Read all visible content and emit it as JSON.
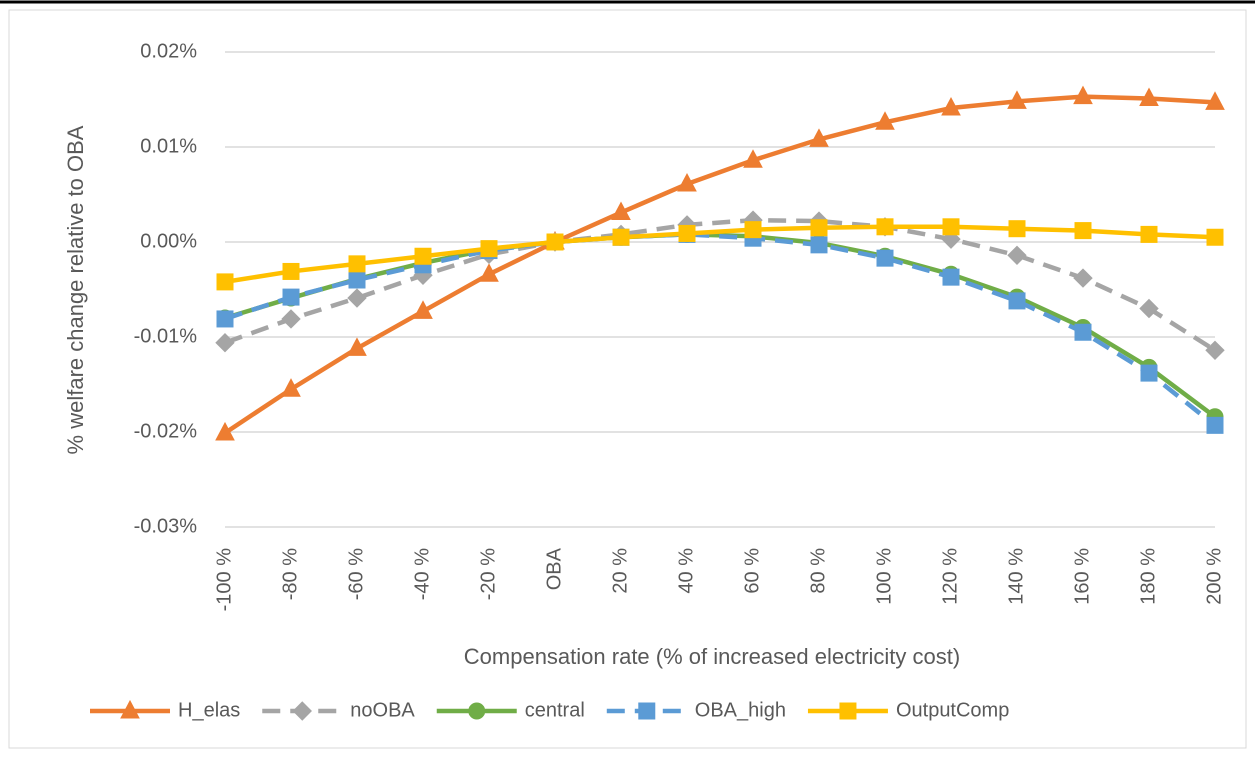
{
  "chart_data": {
    "type": "line",
    "x_label": "Compensation rate (% of increased electricity cost)",
    "y_label": "% welfare change relative to OBA",
    "categories": [
      "-100 %",
      "-80 %",
      "-60 %",
      "-40 %",
      "-20 %",
      "OBA",
      "20 %",
      "40 %",
      "60 %",
      "80 %",
      "100 %",
      "120 %",
      "140 %",
      "160 %",
      "180 %",
      "200 %"
    ],
    "ylim": [
      -0.03,
      0.02
    ],
    "yticks": [
      {
        "value": -0.03,
        "label": "-0.03%"
      },
      {
        "value": -0.02,
        "label": "-0.02%"
      },
      {
        "value": -0.01,
        "label": "-0.01%"
      },
      {
        "value": 0,
        "label": "0.00%"
      },
      {
        "value": 0.01,
        "label": "0.01%"
      },
      {
        "value": 0.02,
        "label": "0.02%"
      }
    ],
    "grid": true,
    "legend": "bottom",
    "series": [
      {
        "name": "H_elas",
        "color": "#ED7D31",
        "marker": "triangle",
        "dashed": false,
        "values": [
          -0.0201,
          -0.0155,
          -0.0112,
          -0.0073,
          -0.0034,
          0,
          0.0031,
          0.0061,
          0.0086,
          0.0108,
          0.0126,
          0.0141,
          0.0148,
          0.0153,
          0.0151,
          0.0147
        ]
      },
      {
        "name": "noOBA",
        "color": "#A5A5A5",
        "marker": "diamond",
        "dashed": true,
        "values": [
          -0.0106,
          -0.0081,
          -0.0059,
          -0.0035,
          -0.0013,
          0,
          0.0008,
          0.0018,
          0.0023,
          0.0022,
          0.0016,
          0.0003,
          -0.0014,
          -0.0038,
          -0.007,
          -0.0114
        ]
      },
      {
        "name": "central",
        "color": "#70AD47",
        "marker": "circle",
        "dashed": false,
        "values": [
          -0.008,
          -0.0059,
          -0.0039,
          -0.0022,
          -0.0008,
          0,
          0.0005,
          0.0008,
          0.0006,
          -0.0001,
          -0.0015,
          -0.0034,
          -0.0058,
          -0.009,
          -0.0132,
          -0.0184
        ]
      },
      {
        "name": "OBA_high",
        "color": "#5B9BD5",
        "marker": "square",
        "dashed": true,
        "values": [
          -0.0081,
          -0.0058,
          -0.004,
          -0.0024,
          -0.0009,
          0,
          0.0005,
          0.0008,
          0.0004,
          -0.0003,
          -0.0017,
          -0.0037,
          -0.0062,
          -0.0095,
          -0.0138,
          -0.0193
        ]
      },
      {
        "name": "OutputComp",
        "color": "#FFC000",
        "marker": "square",
        "dashed": false,
        "values": [
          -0.0042,
          -0.0031,
          -0.0023,
          -0.0015,
          -0.0007,
          0,
          0.0005,
          0.0009,
          0.0013,
          0.0015,
          0.0016,
          0.0016,
          0.0014,
          0.0012,
          0.0008,
          0.0005
        ]
      }
    ]
  }
}
